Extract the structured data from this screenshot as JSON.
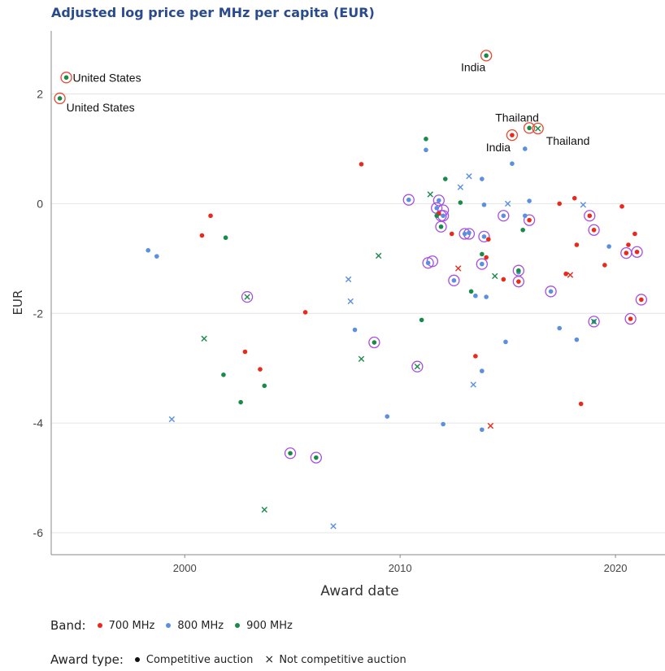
{
  "chart_data": {
    "type": "scatter",
    "title": "Adjusted log price per MHz per capita (EUR)",
    "xlabel": "Award date",
    "ylabel": "EUR",
    "xlim": [
      1993.8,
      2022.3
    ],
    "ylim": [
      -6.4,
      3.15
    ],
    "xticks": [
      2000,
      2010,
      2020
    ],
    "yticks": [
      2,
      0,
      -2,
      -4,
      -6
    ],
    "ytick_labels": [
      "2",
      "0",
      "-2",
      "-4",
      "-6"
    ],
    "grid": "horizontal",
    "colors": {
      "700 MHz": "#e8291c",
      "800 MHz": "#5b8fe0",
      "900 MHz": "#1a8a4a",
      "highlight_purple": "#a64fe0",
      "highlight_red": "#e8472f"
    },
    "legend": {
      "band_label": "Band:",
      "bands": [
        "700 MHz",
        "800 MHz",
        "900 MHz"
      ],
      "award_label": "Award type:",
      "award_types": [
        "Competitive auction",
        "Not competitive auction"
      ]
    },
    "series": [
      {
        "name": "700 MHz",
        "competitive": [
          [
            2000.8,
            -0.58
          ],
          [
            2001.2,
            -0.22
          ],
          [
            2002.8,
            -2.7
          ],
          [
            2003.5,
            -3.02
          ],
          [
            2005.6,
            -1.98
          ],
          [
            2008.2,
            0.72
          ],
          [
            2011.8,
            -0.18
          ],
          [
            2012.4,
            -0.55
          ],
          [
            2013.5,
            -2.78
          ],
          [
            2014.0,
            -0.98
          ],
          [
            2014.1,
            -0.65
          ],
          [
            2014.8,
            -1.38
          ],
          [
            2016.0,
            -0.3
          ],
          [
            2017.4,
            0.0
          ],
          [
            2017.7,
            -1.28
          ],
          [
            2018.1,
            0.1
          ],
          [
            2018.2,
            -0.75
          ],
          [
            2018.4,
            -3.65
          ],
          [
            2018.8,
            -0.22
          ],
          [
            2019.0,
            -0.48
          ],
          [
            2019.5,
            -1.12
          ],
          [
            2020.3,
            -0.05
          ],
          [
            2020.5,
            -0.9
          ],
          [
            2020.6,
            -0.75
          ],
          [
            2020.9,
            -0.55
          ],
          [
            2021.0,
            -0.88
          ],
          [
            2021.2,
            -1.75
          ],
          [
            2020.7,
            -2.1
          ],
          [
            2015.2,
            1.25
          ],
          [
            2015.5,
            -1.42
          ]
        ],
        "not_competitive": [
          [
            2012.7,
            -1.18
          ],
          [
            2014.2,
            -4.05
          ],
          [
            2017.9,
            -1.3
          ]
        ]
      },
      {
        "name": "800 MHz",
        "competitive": [
          [
            1998.3,
            -0.85
          ],
          [
            1998.7,
            -0.96
          ],
          [
            2007.9,
            -2.3
          ],
          [
            2009.4,
            -3.88
          ],
          [
            2010.4,
            0.07
          ],
          [
            2011.2,
            0.98
          ],
          [
            2011.3,
            -1.08
          ],
          [
            2011.7,
            -0.08
          ],
          [
            2011.8,
            0.06
          ],
          [
            2012.0,
            -0.22
          ],
          [
            2012.0,
            -4.02
          ],
          [
            2012.5,
            -1.4
          ],
          [
            2013.0,
            -0.55
          ],
          [
            2013.2,
            -0.53
          ],
          [
            2013.5,
            -1.68
          ],
          [
            2013.8,
            0.45
          ],
          [
            2013.8,
            -1.1
          ],
          [
            2013.8,
            -3.05
          ],
          [
            2013.8,
            -4.12
          ],
          [
            2013.9,
            -0.02
          ],
          [
            2013.9,
            -0.6
          ],
          [
            2014.0,
            -1.7
          ],
          [
            2014.8,
            -0.22
          ],
          [
            2014.9,
            -2.52
          ],
          [
            2015.2,
            0.73
          ],
          [
            2015.5,
            -1.25
          ],
          [
            2015.8,
            1.0
          ],
          [
            2015.8,
            -0.22
          ],
          [
            2016.0,
            0.05
          ],
          [
            2017.0,
            -1.6
          ],
          [
            2017.4,
            -2.27
          ],
          [
            2018.2,
            -2.48
          ],
          [
            2019.0,
            -2.15
          ],
          [
            2019.7,
            -0.78
          ]
        ],
        "not_competitive": [
          [
            1999.4,
            -3.93
          ],
          [
            2007.6,
            -1.38
          ],
          [
            2007.7,
            -1.78
          ],
          [
            2006.9,
            -5.88
          ],
          [
            2012.8,
            0.3
          ],
          [
            2013.2,
            0.5
          ],
          [
            2013.4,
            -3.3
          ],
          [
            2015.0,
            0.0
          ],
          [
            2018.5,
            -0.02
          ]
        ]
      },
      {
        "name": "900 MHz",
        "competitive": [
          [
            1994.2,
            1.92
          ],
          [
            1994.5,
            2.3
          ],
          [
            2001.8,
            -3.12
          ],
          [
            2001.9,
            -0.62
          ],
          [
            2002.6,
            -3.62
          ],
          [
            2003.7,
            -3.32
          ],
          [
            2004.9,
            -4.55
          ],
          [
            2006.1,
            -4.63
          ],
          [
            2008.8,
            -2.53
          ],
          [
            2011.0,
            -2.12
          ],
          [
            2011.2,
            1.18
          ],
          [
            2011.7,
            -0.22
          ],
          [
            2011.9,
            -0.42
          ],
          [
            2012.1,
            0.45
          ],
          [
            2012.8,
            0.02
          ],
          [
            2013.3,
            -1.6
          ],
          [
            2013.8,
            -0.92
          ],
          [
            2014.0,
            2.7
          ],
          [
            2015.5,
            -1.22
          ],
          [
            2015.7,
            -0.48
          ],
          [
            2016.0,
            1.38
          ]
        ],
        "not_competitive": [
          [
            2000.9,
            -2.46
          ],
          [
            2002.9,
            -1.7
          ],
          [
            2003.7,
            -5.58
          ],
          [
            2008.2,
            -2.83
          ],
          [
            2009.0,
            -0.95
          ],
          [
            2010.8,
            -2.97
          ],
          [
            2011.4,
            0.17
          ],
          [
            2014.4,
            -1.32
          ],
          [
            2016.4,
            1.37
          ],
          [
            2019.0,
            -2.15
          ]
        ]
      }
    ],
    "highlight_purple": [
      [
        2002.9,
        -1.7
      ],
      [
        2004.9,
        -4.55
      ],
      [
        2006.1,
        -4.63
      ],
      [
        2008.8,
        -2.53
      ],
      [
        2010.4,
        0.07
      ],
      [
        2010.8,
        -2.97
      ],
      [
        2011.3,
        -1.08
      ],
      [
        2011.5,
        -1.05
      ],
      [
        2011.7,
        -0.08
      ],
      [
        2011.8,
        0.06
      ],
      [
        2011.9,
        -0.22
      ],
      [
        2012.0,
        -0.12
      ],
      [
        2011.9,
        -0.42
      ],
      [
        2012.0,
        -0.22
      ],
      [
        2012.5,
        -1.4
      ],
      [
        2013.0,
        -0.55
      ],
      [
        2013.2,
        -0.55
      ],
      [
        2013.8,
        -1.1
      ],
      [
        2013.9,
        -0.6
      ],
      [
        2014.8,
        -0.22
      ],
      [
        2015.5,
        -1.22
      ],
      [
        2015.5,
        -1.42
      ],
      [
        2016.0,
        -0.3
      ],
      [
        2017.0,
        -1.6
      ],
      [
        2018.8,
        -0.22
      ],
      [
        2019.0,
        -0.48
      ],
      [
        2019.0,
        -2.15
      ],
      [
        2020.5,
        -0.9
      ],
      [
        2020.7,
        -2.1
      ],
      [
        2021.0,
        -0.88
      ],
      [
        2021.2,
        -1.75
      ]
    ],
    "highlight_red": [
      [
        1994.2,
        1.92
      ],
      [
        1994.5,
        2.3
      ],
      [
        2014.0,
        2.7
      ],
      [
        2015.2,
        1.25
      ],
      [
        2016.0,
        1.38
      ],
      [
        2016.4,
        1.37
      ]
    ],
    "annotations": [
      {
        "text": "United States",
        "x": 1994.5,
        "y": 2.3
      },
      {
        "text": "United States",
        "x": 1994.2,
        "y": 1.92
      },
      {
        "text": "India",
        "x": 2014.0,
        "y": 2.7
      },
      {
        "text": "Thailand",
        "x": 2016.0,
        "y": 1.38
      },
      {
        "text": "India",
        "x": 2015.2,
        "y": 1.25
      },
      {
        "text": "Thailand",
        "x": 2016.4,
        "y": 1.37
      }
    ]
  }
}
